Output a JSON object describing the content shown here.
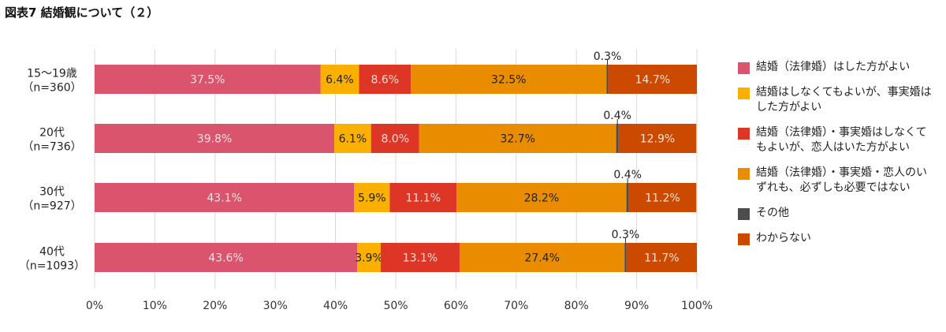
{
  "title": "図表7 結婚観について（２）",
  "chart_data": {
    "type": "bar",
    "orientation": "horizontal",
    "stacked": true,
    "title": "図表7 結婚観について（２）",
    "xlabel": "",
    "ylabel": "",
    "xlim": [
      0,
      100
    ],
    "x_ticks": [
      "0%",
      "10%",
      "20%",
      "30%",
      "40%",
      "50%",
      "60%",
      "70%",
      "80%",
      "90%",
      "100%"
    ],
    "grid": true,
    "legend_position": "right",
    "categories": [
      {
        "line1": "15～19歳",
        "line2": "（n=360）"
      },
      {
        "line1": "20代",
        "line2": "（n=736）"
      },
      {
        "line1": "30代",
        "line2": "（n=927）"
      },
      {
        "line1": "40代",
        "line2": "（n=1093）"
      }
    ],
    "series": [
      {
        "name": "結婚（法律婚）はした方がよい",
        "color": "#d9546c",
        "label_color": "#f4e1e4",
        "values": [
          37.5,
          39.8,
          43.1,
          43.6
        ],
        "labels": [
          "37.5%",
          "39.8%",
          "43.1%",
          "43.6%"
        ]
      },
      {
        "name": "結婚はしなくてもよいが、事実婚はした方がよい",
        "color": "#fbb000",
        "label_color": "#222222",
        "values": [
          6.4,
          6.1,
          5.9,
          3.9
        ],
        "labels": [
          "6.4%",
          "6.1%",
          "5.9%",
          "3.9%"
        ]
      },
      {
        "name": "結婚（法律婚）・事実婚はしなくてもよいが、恋人はいた方がよい",
        "color": "#de3626",
        "label_color": "#f6dcd7",
        "values": [
          8.6,
          8.0,
          11.1,
          13.1
        ],
        "labels": [
          "8.6%",
          "8.0%",
          "11.1%",
          "13.1%"
        ]
      },
      {
        "name": "結婚（法律婚）・事実婚・恋人のいずれも、必ずしも必要ではない",
        "color": "#e98c00",
        "label_color": "#222222",
        "values": [
          32.5,
          32.7,
          28.2,
          27.4
        ],
        "labels": [
          "32.5%",
          "32.7%",
          "28.2%",
          "27.4%"
        ]
      },
      {
        "name": "その他",
        "color": "#4d4d4d",
        "label_color": "#222222",
        "values": [
          0.3,
          0.4,
          0.4,
          0.3
        ],
        "labels": [
          "0.3%",
          "0.4%",
          "0.4%",
          "0.3%"
        ],
        "label_outside": true
      },
      {
        "name": "わからない",
        "color": "#cc4a00",
        "label_color": "#f6e2d6",
        "values": [
          14.7,
          12.9,
          11.2,
          11.7
        ],
        "labels": [
          "14.7%",
          "12.9%",
          "11.2%",
          "11.7%"
        ]
      }
    ]
  }
}
